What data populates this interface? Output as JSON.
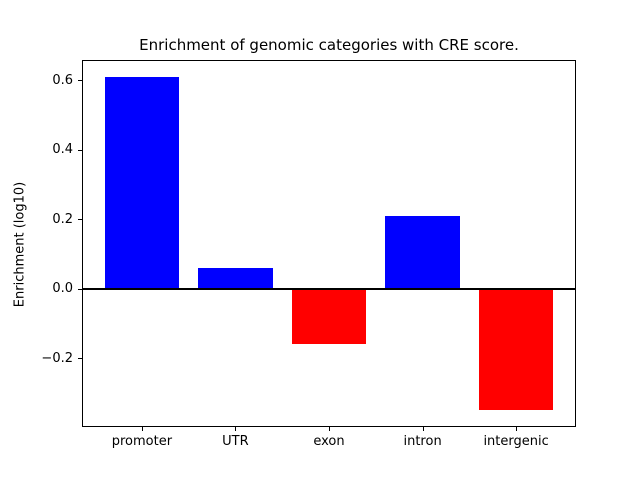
{
  "figure": {
    "background": "#ffffff",
    "axis_color": "#000000"
  },
  "chart_data": {
    "type": "bar",
    "title": "Enrichment of genomic categories with CRE score.",
    "xlabel": "",
    "ylabel": "Enrichment (log10)",
    "categories": [
      "promoter",
      "UTR",
      "exon",
      "intron",
      "intergenic"
    ],
    "values": [
      0.61,
      0.06,
      -0.16,
      0.21,
      -0.35
    ],
    "bar_colors": [
      "#0000ff",
      "#0000ff",
      "#ff0000",
      "#0000ff",
      "#ff0000"
    ],
    "positive_color": "#0000ff",
    "negative_color": "#ff0000",
    "yticks": [
      0.6,
      0.4,
      0.2,
      0.0,
      -0.2
    ],
    "ytick_labels": [
      "0.6",
      "0.4",
      "0.2",
      "0.0",
      "−0.2"
    ],
    "ylim": [
      -0.398,
      0.658
    ],
    "xlim": [
      -0.64,
      4.64
    ],
    "bar_width_units": 0.8,
    "zero_line": true,
    "grid": false,
    "legend": null
  }
}
